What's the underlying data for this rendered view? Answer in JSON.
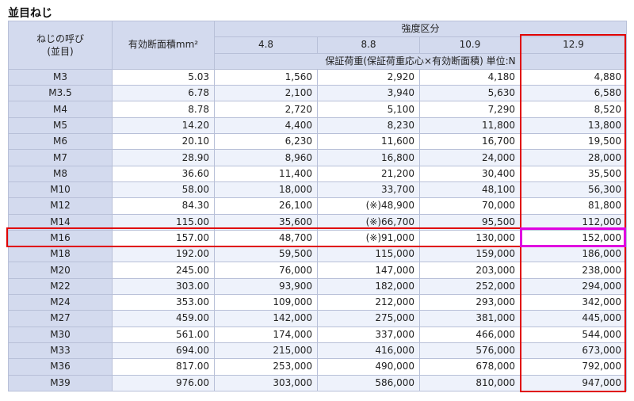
{
  "title": "並目ねじ",
  "headers": {
    "name": "ねじの呼び\n(並目)",
    "area": "有効断面積mm²",
    "strength": "強度区分",
    "classes": [
      "4.8",
      "8.8",
      "10.9",
      "12.9"
    ],
    "subtitle": "保証荷重(保証荷重応心×有効断面積) 単位:N"
  },
  "rows": [
    {
      "name": "M3",
      "area": "5.03",
      "v": [
        "1,560",
        "2,920",
        "4,180",
        "4,880"
      ]
    },
    {
      "name": "M3.5",
      "area": "6.78",
      "v": [
        "2,100",
        "3,940",
        "5,630",
        "6,580"
      ]
    },
    {
      "name": "M4",
      "area": "8.78",
      "v": [
        "2,720",
        "5,100",
        "7,290",
        "8,520"
      ]
    },
    {
      "name": "M5",
      "area": "14.20",
      "v": [
        "4,400",
        "8,230",
        "11,800",
        "13,800"
      ]
    },
    {
      "name": "M6",
      "area": "20.10",
      "v": [
        "6,230",
        "11,600",
        "16,700",
        "19,500"
      ]
    },
    {
      "name": "M7",
      "area": "28.90",
      "v": [
        "8,960",
        "16,800",
        "24,000",
        "28,000"
      ]
    },
    {
      "name": "M8",
      "area": "36.60",
      "v": [
        "11,400",
        "21,200",
        "30,400",
        "35,500"
      ]
    },
    {
      "name": "M10",
      "area": "58.00",
      "v": [
        "18,000",
        "33,700",
        "48,100",
        "56,300"
      ]
    },
    {
      "name": "M12",
      "area": "84.30",
      "v": [
        "26,100",
        "(※)48,900",
        "70,000",
        "81,800"
      ]
    },
    {
      "name": "M14",
      "area": "115.00",
      "v": [
        "35,600",
        "(※)66,700",
        "95,500",
        "112,000"
      ]
    },
    {
      "name": "M16",
      "area": "157.00",
      "v": [
        "48,700",
        "(※)91,000",
        "130,000",
        "152,000"
      ]
    },
    {
      "name": "M18",
      "area": "192.00",
      "v": [
        "59,500",
        "115,000",
        "159,000",
        "186,000"
      ]
    },
    {
      "name": "M20",
      "area": "245.00",
      "v": [
        "76,000",
        "147,000",
        "203,000",
        "238,000"
      ]
    },
    {
      "name": "M22",
      "area": "303.00",
      "v": [
        "93,900",
        "182,000",
        "252,000",
        "294,000"
      ]
    },
    {
      "name": "M24",
      "area": "353.00",
      "v": [
        "109,000",
        "212,000",
        "293,000",
        "342,000"
      ]
    },
    {
      "name": "M27",
      "area": "459.00",
      "v": [
        "142,000",
        "275,000",
        "381,000",
        "445,000"
      ]
    },
    {
      "name": "M30",
      "area": "561.00",
      "v": [
        "174,000",
        "337,000",
        "466,000",
        "544,000"
      ]
    },
    {
      "name": "M33",
      "area": "694.00",
      "v": [
        "215,000",
        "416,000",
        "576,000",
        "673,000"
      ]
    },
    {
      "name": "M36",
      "area": "817.00",
      "v": [
        "253,000",
        "490,000",
        "678,000",
        "792,000"
      ]
    },
    {
      "name": "M39",
      "area": "976.00",
      "v": [
        "303,000",
        "586,000",
        "810,000",
        "947,000"
      ]
    }
  ],
  "highlight": {
    "row": "M16",
    "column": "12.9",
    "box_color": "#e00000",
    "cell_color": "#e000e0"
  }
}
